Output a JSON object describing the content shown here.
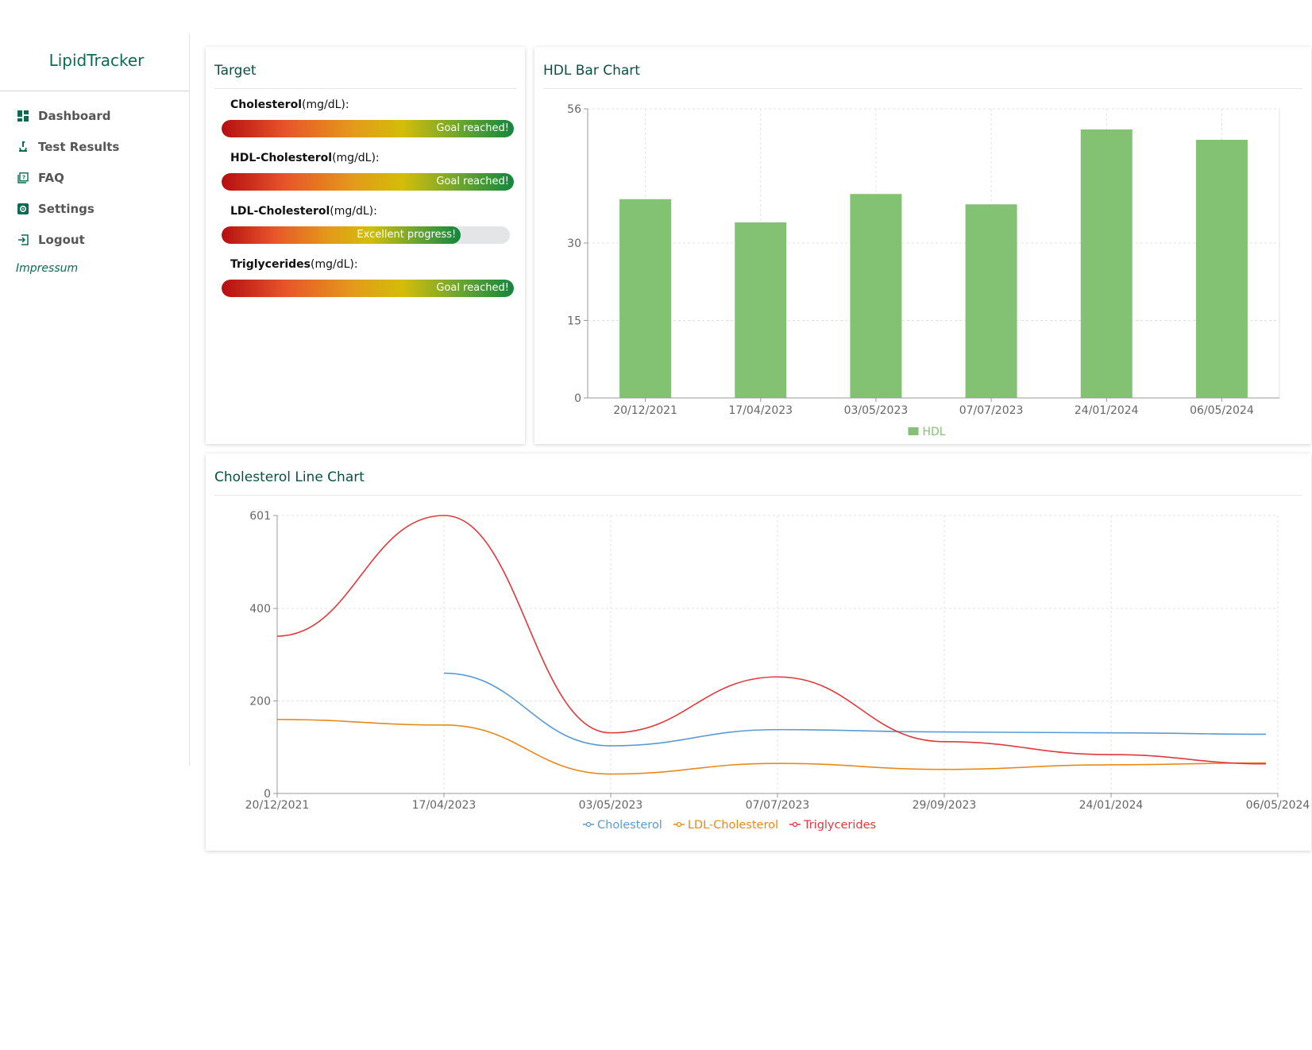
{
  "app": {
    "brand": "LipidTracker"
  },
  "sidebar": {
    "items": [
      {
        "label": "Dashboard",
        "icon": "dashboard-icon"
      },
      {
        "label": "Test Results",
        "icon": "microscope-icon"
      },
      {
        "label": "FAQ",
        "icon": "faq-icon"
      },
      {
        "label": "Settings",
        "icon": "gear-icon"
      },
      {
        "label": "Logout",
        "icon": "logout-icon"
      }
    ],
    "footer_link": "Impressum"
  },
  "target": {
    "title": "Target",
    "metrics": [
      {
        "name": "Cholesterol",
        "unit": "(mg/dL):",
        "status": "Goal reached!",
        "progress": 1.0
      },
      {
        "name": "HDL-Cholesterol",
        "unit": "(mg/dL):",
        "status": "Goal reached!",
        "progress": 1.0
      },
      {
        "name": "LDL-Cholesterol",
        "unit": "(mg/dL):",
        "status": "Excellent progress!",
        "progress": 0.83
      },
      {
        "name": "Triglycerides",
        "unit": "(mg/dL):",
        "status": "Goal reached!",
        "progress": 1.0
      }
    ]
  },
  "hdl_chart": {
    "title": "HDL Bar Chart"
  },
  "line_chart": {
    "title": "Cholesterol Line Chart"
  },
  "colors": {
    "accent": "#0b6b52",
    "bar": "#82c272",
    "cholesterol": "#5b9bd5",
    "ldl": "#e8891c",
    "triglycerides": "#e0393e"
  },
  "chart_data": [
    {
      "type": "bar",
      "categories": [
        "20/12/2021",
        "17/04/2023",
        "03/05/2023",
        "07/07/2023",
        "24/01/2024",
        "06/05/2024"
      ],
      "series": [
        {
          "name": "HDL",
          "values": [
            38.5,
            34,
            39.5,
            37.5,
            52,
            50
          ]
        }
      ],
      "yticks": [
        0,
        15,
        30,
        56
      ],
      "ylim": [
        0,
        56
      ],
      "grid": true,
      "legend": "bottom"
    },
    {
      "type": "line",
      "x": [
        "20/12/2021",
        "17/04/2023",
        "03/05/2023",
        "07/07/2023",
        "29/09/2023",
        "24/01/2024",
        "06/05/2024"
      ],
      "series": [
        {
          "name": "Cholesterol",
          "values": [
            null,
            260,
            103,
            138,
            133,
            131,
            128
          ]
        },
        {
          "name": "LDL-Cholesterol",
          "values": [
            160,
            148,
            42,
            65,
            52,
            62,
            66
          ]
        },
        {
          "name": "Triglycerides",
          "values": [
            340,
            601,
            131,
            252,
            112,
            84,
            64
          ]
        }
      ],
      "yticks": [
        0,
        200,
        400,
        601
      ],
      "ylim": [
        0,
        601
      ],
      "grid": true,
      "legend": "bottom"
    }
  ]
}
